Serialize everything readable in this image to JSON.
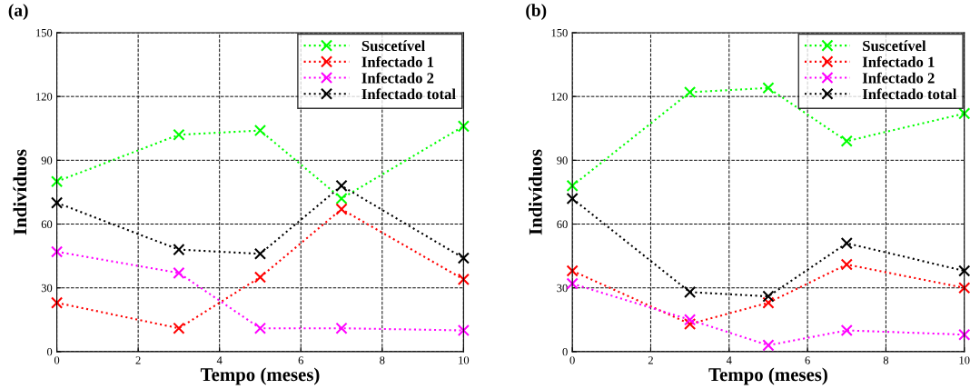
{
  "chart_data": [
    {
      "type": "line",
      "annotations": [
        "(a)"
      ],
      "xlabel": "Tempo (meses)",
      "ylabel": "Indivíduos",
      "x": [
        0,
        3,
        5,
        7,
        10
      ],
      "xlim": [
        0,
        10
      ],
      "xticks": [
        0,
        2,
        4,
        6,
        8,
        10
      ],
      "ylim": [
        0,
        150
      ],
      "yticks": [
        0,
        30,
        60,
        90,
        120,
        150
      ],
      "grid": true,
      "legend": "top right",
      "marker": "cross",
      "line_style": "dotted",
      "series": [
        {
          "name": "Suscetível",
          "color": "#00ff00",
          "values": [
            80,
            102,
            104,
            72,
            106
          ]
        },
        {
          "name": "Infectado 1",
          "color": "#ff0000",
          "values": [
            23,
            11,
            35,
            67,
            34
          ]
        },
        {
          "name": "Infectado 2",
          "color": "#ff00ff",
          "values": [
            47,
            37,
            11,
            11,
            10
          ]
        },
        {
          "name": "Infectado total",
          "color": "#000000",
          "values": [
            70,
            48,
            46,
            78,
            44
          ]
        }
      ]
    },
    {
      "type": "line",
      "annotations": [
        "(b)"
      ],
      "xlabel": "Tempo (meses)",
      "ylabel": "Indivíduos",
      "x": [
        0,
        3,
        5,
        7,
        10
      ],
      "xlim": [
        0,
        10
      ],
      "xticks": [
        0,
        2,
        4,
        6,
        8,
        10
      ],
      "ylim": [
        0,
        150
      ],
      "yticks": [
        0,
        30,
        60,
        90,
        120,
        150
      ],
      "grid": true,
      "legend": "top right",
      "marker": "cross",
      "line_style": "dotted",
      "series": [
        {
          "name": "Suscetível",
          "color": "#00ff00",
          "values": [
            78,
            122,
            124,
            99,
            112
          ]
        },
        {
          "name": "Infectado 1",
          "color": "#ff0000",
          "values": [
            38,
            13,
            23,
            41,
            30
          ]
        },
        {
          "name": "Infectado 2",
          "color": "#ff00ff",
          "values": [
            32,
            15,
            3,
            10,
            8
          ]
        },
        {
          "name": "Infectado total",
          "color": "#000000",
          "values": [
            72,
            28,
            26,
            51,
            38
          ]
        }
      ]
    }
  ]
}
